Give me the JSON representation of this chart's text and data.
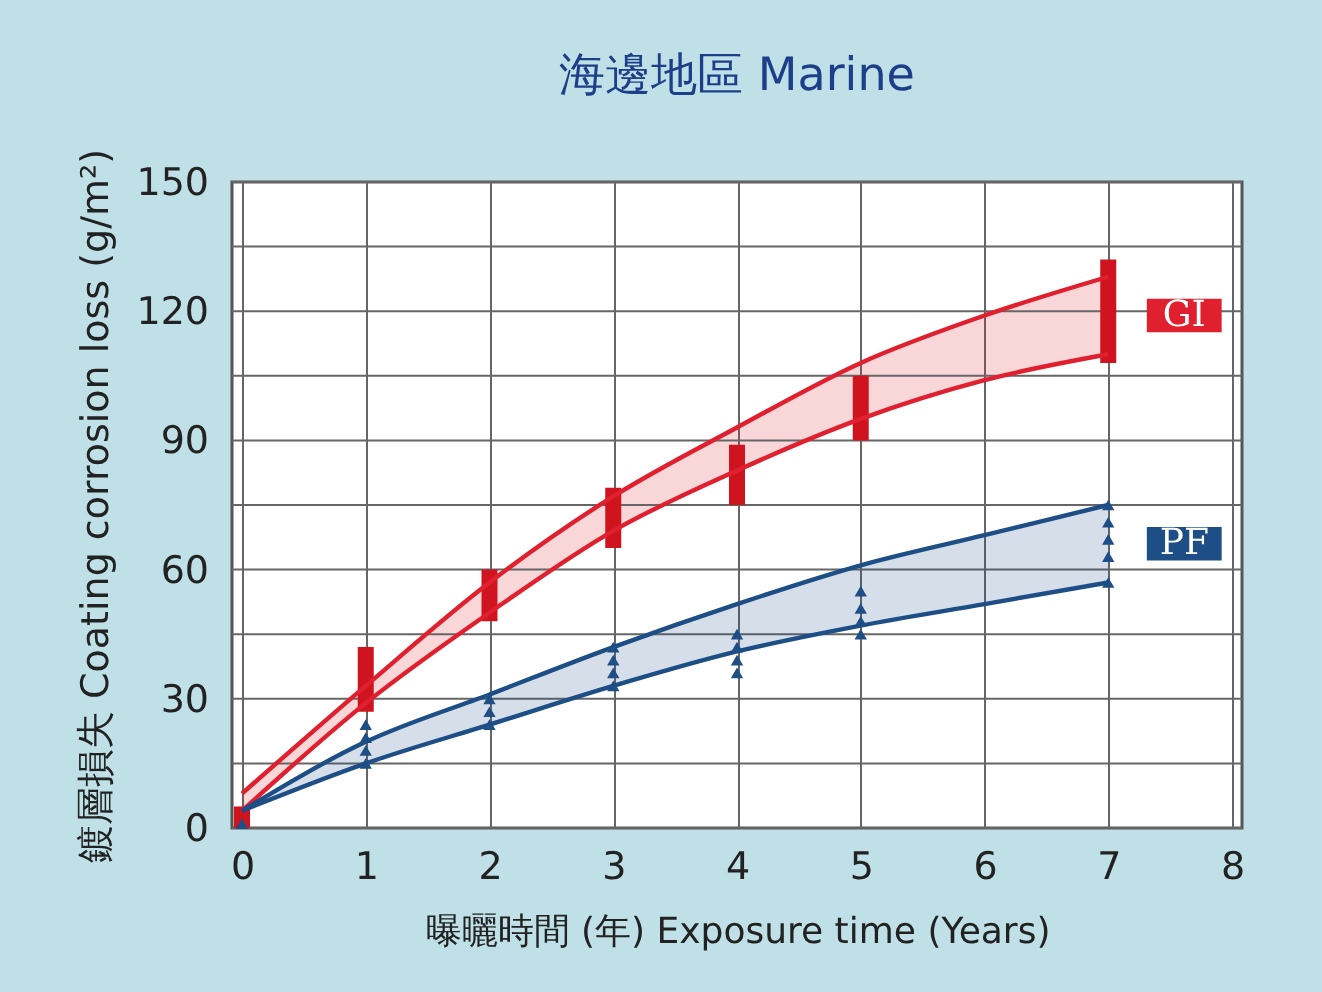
{
  "chart_data": {
    "type": "line",
    "title": "海邊地區    Marine",
    "xlabel": "曝曬時間 (年)    Exposure time (Years)",
    "ylabel": "鍍層損失 Coating corrosion loss (g/m²)",
    "xlim": [
      0,
      8
    ],
    "xticks": [
      0,
      1,
      2,
      3,
      4,
      5,
      6,
      7,
      8
    ],
    "ylim": [
      0,
      150
    ],
    "yticks": [
      0,
      {
        "value": 15,
        "label": null
      },
      30,
      {
        "value": 45,
        "label": null
      },
      60,
      {
        "value": 75,
        "label": null
      },
      90,
      {
        "value": 105,
        "label": null
      },
      120,
      {
        "value": 135,
        "label": null
      },
      150
    ],
    "grid": true,
    "legend": false,
    "series": [
      {
        "name": "GI",
        "color": "#e0202e",
        "x": [
          0,
          1,
          2,
          3,
          4,
          5,
          6,
          7
        ],
        "values": [
          8,
          33,
          57,
          77,
          93,
          108,
          119,
          128
        ],
        "lower": [
          4,
          29,
          50,
          69,
          83,
          95,
          104,
          110
        ],
        "upper": [
          8,
          33,
          57,
          77,
          93,
          108,
          119,
          128
        ]
      },
      {
        "color": "#e0202e",
        "x": [
          0,
          1,
          2,
          3,
          4,
          5,
          6,
          7
        ],
        "values": [
          4,
          29,
          50,
          69,
          83,
          95,
          104,
          110
        ]
      },
      {
        "name": "PF",
        "color": "#1d4e86",
        "x": [
          0,
          1,
          2,
          3,
          4,
          5,
          6,
          7
        ],
        "values": [
          4,
          20,
          31,
          42,
          52,
          61,
          68,
          75
        ],
        "lower": [
          4,
          15,
          24,
          33,
          41,
          47,
          52,
          57
        ],
        "upper": [
          4,
          20,
          31,
          42,
          52,
          61,
          68,
          75
        ]
      },
      {
        "color": "#1d4e86",
        "x": [
          0,
          1,
          2,
          3,
          4,
          5,
          6,
          7
        ],
        "values": [
          4,
          15,
          24,
          33,
          41,
          47,
          52,
          57
        ]
      },
      {
        "type": "bar",
        "color": "#d0141f",
        "x": [
          0,
          1,
          2,
          3,
          4,
          5,
          7
        ],
        "base": [
          0,
          27,
          48,
          65,
          75,
          90,
          108
        ],
        "values": [
          5,
          15,
          12,
          14,
          14,
          15,
          24
        ]
      },
      {
        "type": "scatter",
        "marker": "triangle",
        "color": "#1d4e86",
        "x": [
          0,
          1,
          1,
          1,
          1,
          2,
          2,
          2,
          3,
          3,
          3,
          3,
          4,
          4,
          4,
          4,
          5,
          5,
          5,
          5,
          7,
          7,
          7,
          7,
          7
        ],
        "values": [
          1,
          15,
          18,
          21,
          24,
          24,
          27,
          30,
          33,
          36,
          39,
          42,
          36,
          39,
          42,
          45,
          45,
          48,
          51,
          55,
          57,
          63,
          67,
          71,
          75
        ]
      }
    ]
  }
}
